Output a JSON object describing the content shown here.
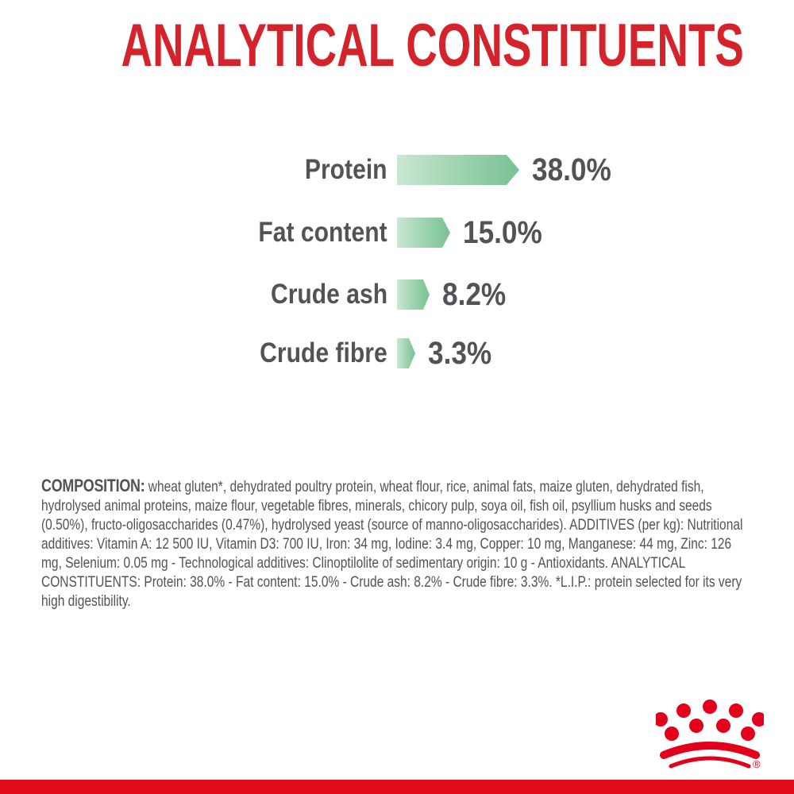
{
  "title": {
    "text": "ANALYTICAL CONSTITUENTS"
  },
  "chart_data": {
    "type": "bar",
    "orientation": "horizontal",
    "title": "ANALYTICAL CONSTITUENTS",
    "categories": [
      "Protein",
      "Fat content",
      "Crude ash",
      "Crude fibre"
    ],
    "values": [
      38.0,
      15.0,
      8.2,
      3.3
    ],
    "value_labels": [
      "38.0%",
      "15.0%",
      "8.2%",
      "3.3%"
    ],
    "unit": "%",
    "axis": "none",
    "grid": false,
    "bar_style": "right-pointing arrow, green gradient"
  },
  "composition": {
    "label": "COMPOSITION:",
    "text": "wheat gluten*, dehydrated poultry protein, wheat flour, rice, animal fats, maize gluten, dehydrated fish, hydrolysed animal proteins, maize flour, vegetable fibres, minerals, chicory pulp, soya oil, fish oil, psyllium husks and seeds (0.50%), fructo-oligosaccharides (0.47%), hydrolysed yeast (source of manno-oligosaccharides). ADDITIVES (per kg): Nutritional additives: Vitamin A: 12 500 IU, Vitamin D3: 700 IU, Iron: 34 mg, Iodine: 3.4 mg, Copper: 10 mg, Manganese: 44 mg, Zinc: 126 mg, Selenium: 0.05 mg - Technological additives: Clinoptilolite of sedimentary origin: 10 g - Antioxidants. ANALYTICAL CONSTITUENTS: Protein: 38.0% - Fat content: 15.0% - Crude ash: 8.2% - Crude fibre: 3.3%. *L.I.P.: protein selected for its very high digestibility."
  },
  "footer": {
    "brand_logo": "royal-canin-crown",
    "registered_mark": "®"
  },
  "colors": {
    "title_red": "#d5232c",
    "brand_red": "#e2001a",
    "footer_bar_red": "#df0c18",
    "bar_gradient_start": "#cae7d3",
    "bar_gradient_end": "#79c192",
    "text_dark": "#525357",
    "background": "#ffffff"
  }
}
